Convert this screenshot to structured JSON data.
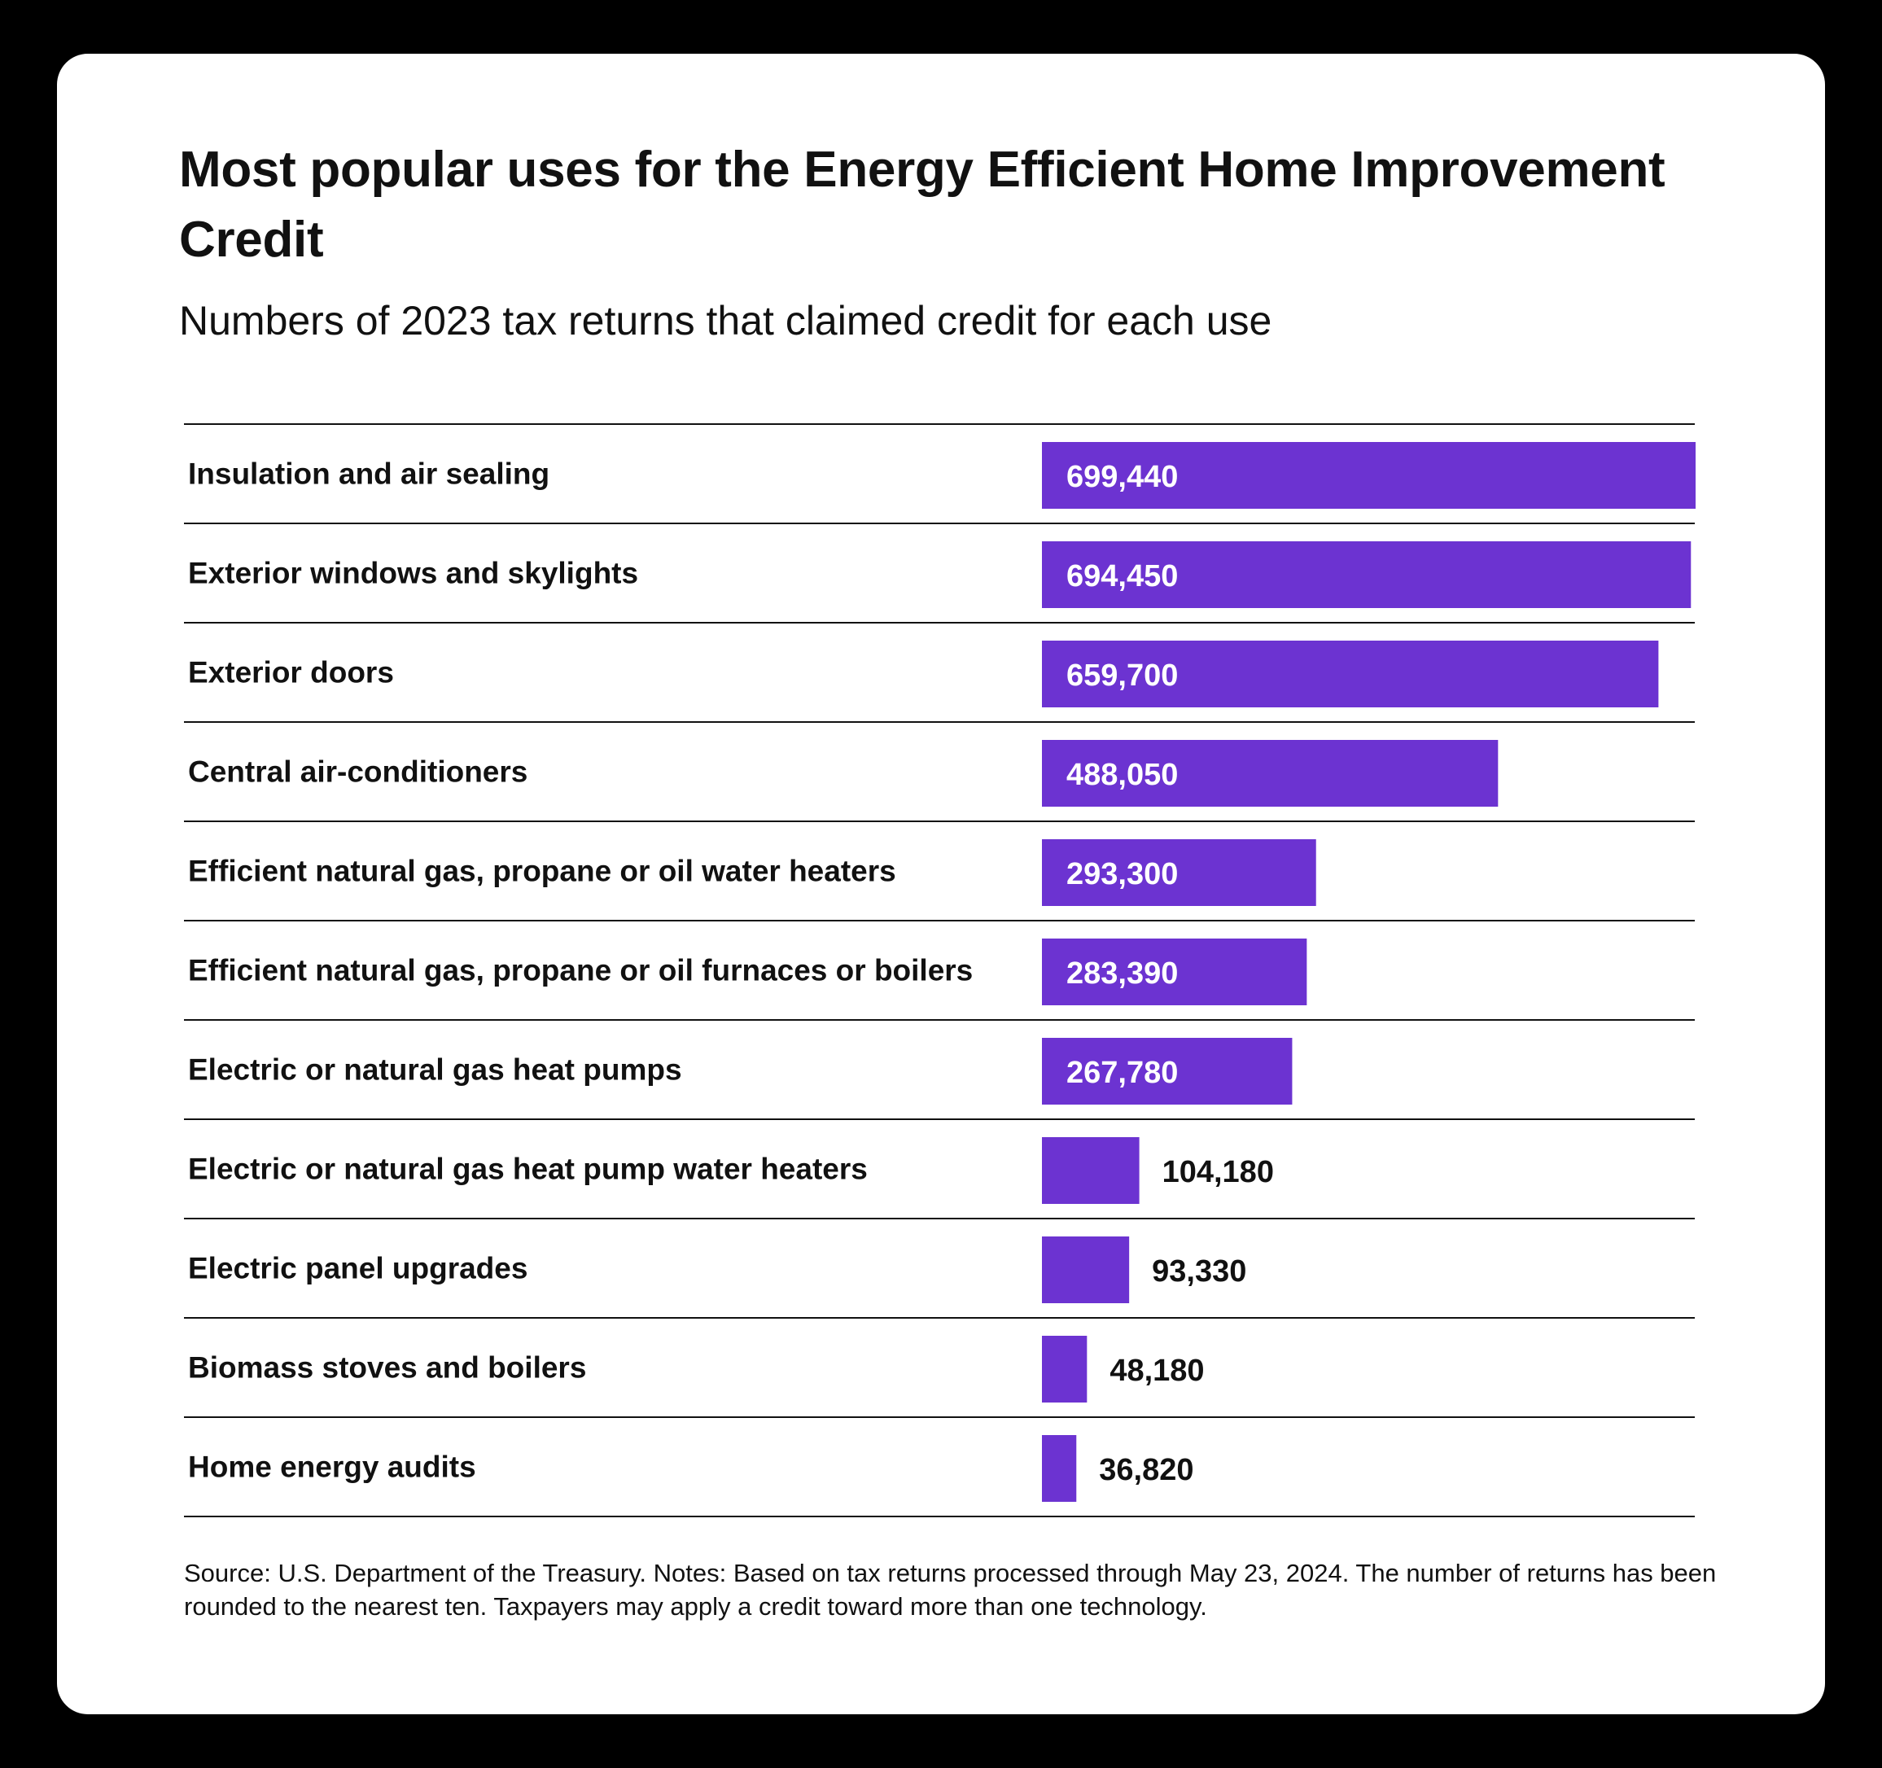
{
  "title": "Most popular uses for the Energy Efficient Home Improvement Credit",
  "subtitle": "Numbers of 2023 tax returns that claimed credit for each use",
  "source": "Source: U.S. Department of the Treasury. Notes: Based on tax returns processed through May 23, 2024. The number of returns has been rounded to the nearest ten. Taxpayers may apply a credit toward more than one technology.",
  "colors": {
    "bar": "#6C33D1",
    "text": "#111111",
    "inside_label": "#ffffff",
    "background": "#000000",
    "card": "#ffffff"
  },
  "chart_data": {
    "type": "bar",
    "orientation": "horizontal",
    "title": "Most popular uses for the Energy Efficient Home Improvement Credit",
    "subtitle": "Numbers of 2023 tax returns that claimed credit for each use",
    "xlabel": "",
    "ylabel": "",
    "xlim": [
      0,
      699440
    ],
    "grid": false,
    "legend": "none",
    "categories": [
      "Insulation and air sealing",
      "Exterior windows and skylights",
      "Exterior doors",
      "Central air-conditioners",
      "Efficient natural gas, propane or oil water heaters",
      "Efficient natural gas, propane or oil furnaces or boilers",
      "Electric or natural gas heat pumps",
      "Electric or natural gas heat pump water heaters",
      "Electric panel upgrades",
      "Biomass stoves and boilers",
      "Home energy audits"
    ],
    "values": [
      699440,
      694450,
      659700,
      488050,
      293300,
      283390,
      267780,
      104180,
      93330,
      48180,
      36820
    ],
    "labels": [
      "699,440",
      "694,450",
      "659,700",
      "488,050",
      "293,300",
      "283,390",
      "267,780",
      "104,180",
      "93,330",
      "48,180",
      "36,820"
    ]
  }
}
